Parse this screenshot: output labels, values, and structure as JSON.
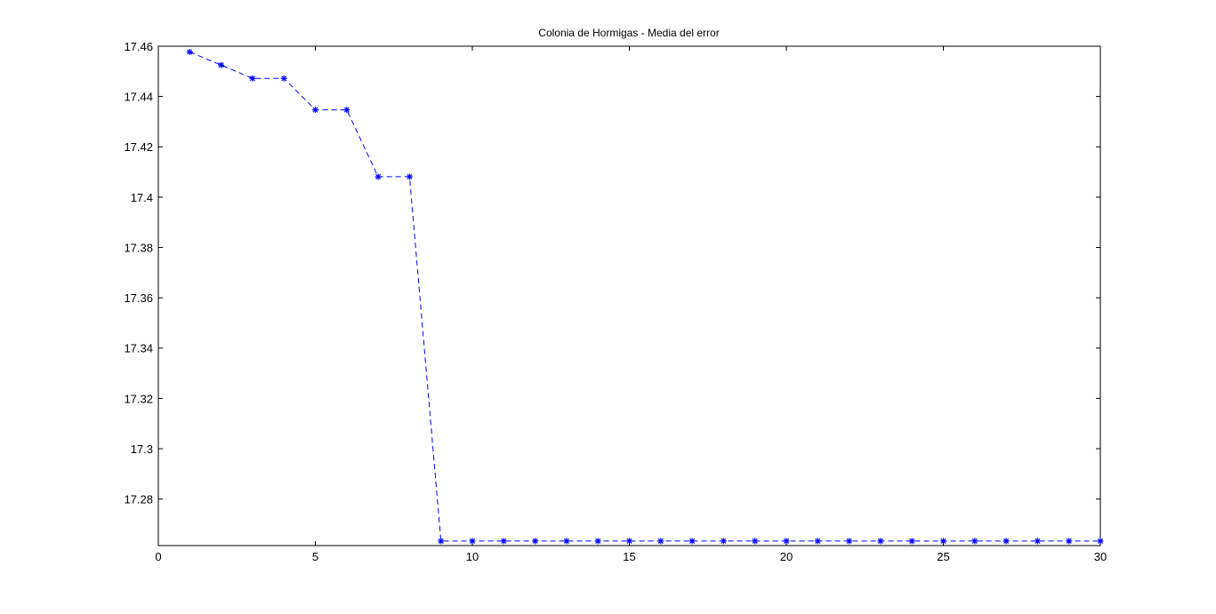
{
  "chart_data": {
    "type": "line",
    "title": "Colonia de Hormigas - Media del error",
    "xlabel": "",
    "ylabel": "",
    "xlim": [
      0,
      30
    ],
    "ylim": [
      17.2615,
      17.46
    ],
    "xticks": [
      0,
      5,
      10,
      15,
      20,
      25,
      30
    ],
    "xtick_labels": [
      "0",
      "5",
      "10",
      "15",
      "20",
      "25",
      "30"
    ],
    "yticks": [
      17.28,
      17.3,
      17.32,
      17.34,
      17.36,
      17.38,
      17.4,
      17.42,
      17.44,
      17.46
    ],
    "ytick_labels": [
      "17.28",
      "17.3",
      "17.32",
      "17.34",
      "17.36",
      "17.38",
      "17.4",
      "17.42",
      "17.44",
      "17.46"
    ],
    "grid": false,
    "legend": "none",
    "series": [
      {
        "line_style": "dashed",
        "marker": "asterisk",
        "color": "#0000ff",
        "x": [
          1,
          2,
          3,
          4,
          5,
          6,
          7,
          8,
          9,
          10,
          11,
          12,
          13,
          14,
          15,
          16,
          17,
          18,
          19,
          20,
          21,
          22,
          23,
          24,
          25,
          26,
          27,
          28,
          29,
          30
        ],
        "y": [
          17.4577,
          17.4525,
          17.4472,
          17.4472,
          17.4347,
          17.4347,
          17.4081,
          17.4081,
          17.2633,
          17.2633,
          17.2633,
          17.2633,
          17.2633,
          17.2633,
          17.2633,
          17.2633,
          17.2633,
          17.2633,
          17.2633,
          17.2633,
          17.2633,
          17.2633,
          17.2633,
          17.2633,
          17.2633,
          17.2633,
          17.2633,
          17.2633,
          17.2633,
          17.2633
        ]
      }
    ]
  }
}
